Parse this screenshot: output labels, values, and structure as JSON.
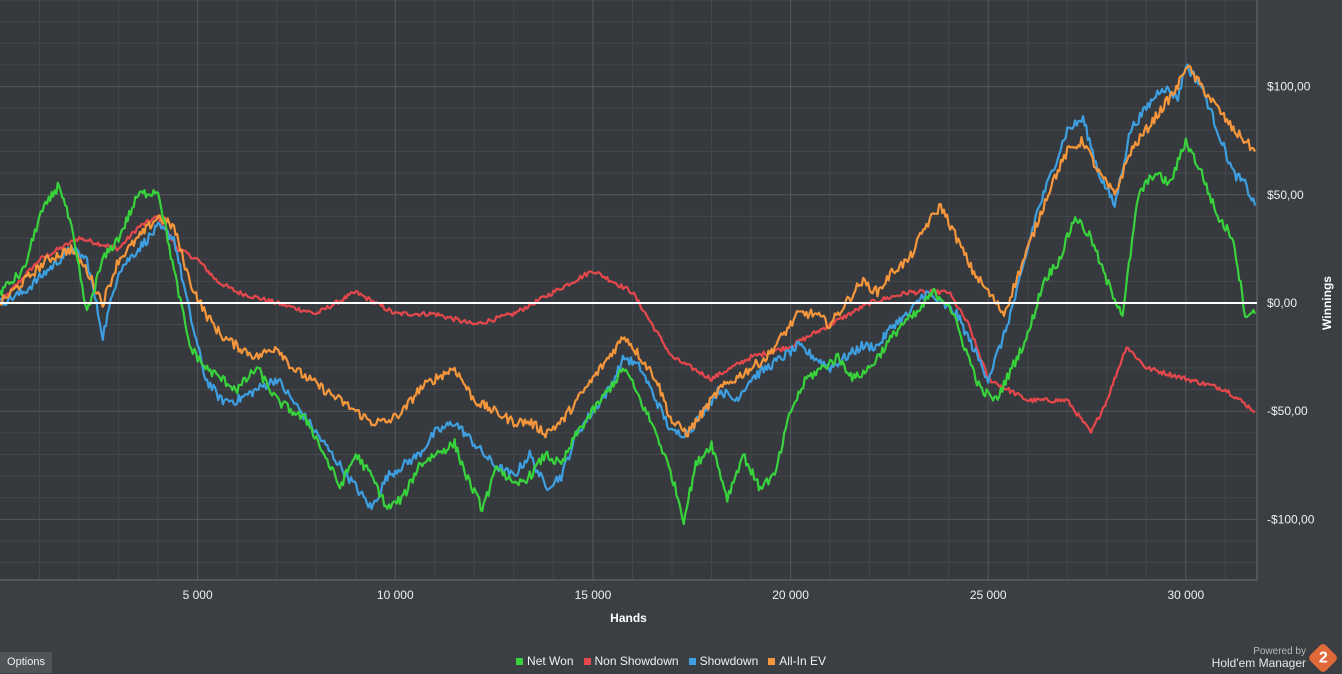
{
  "chart_data": {
    "type": "line",
    "title": "",
    "xlabel": "Hands",
    "ylabel": "Winnings",
    "xlim": [
      0,
      31800
    ],
    "ylim": [
      -128,
      140
    ],
    "x_ticks": [
      5000,
      10000,
      15000,
      20000,
      25000,
      30000
    ],
    "x_tick_labels": [
      "5 000",
      "10 000",
      "15 000",
      "20 000",
      "25 000",
      "30 000"
    ],
    "y_ticks": [
      100,
      50,
      0,
      -50,
      -100
    ],
    "y_tick_labels": [
      "$100,00",
      "$50,00",
      "$0,00",
      "-$50,00",
      "-$100,00"
    ],
    "grid": true,
    "legend_position": "bottom-center",
    "zero_line": true,
    "series": [
      {
        "name": "Net Won",
        "color": "#38d23c",
        "x": [
          0,
          600,
          1000,
          1500,
          1800,
          2200,
          2600,
          3000,
          3500,
          4000,
          4400,
          4800,
          5200,
          5600,
          6000,
          6500,
          7000,
          7400,
          7800,
          8200,
          8600,
          9000,
          9400,
          9800,
          10200,
          10600,
          11000,
          11500,
          11800,
          12200,
          12600,
          13000,
          13400,
          13800,
          14200,
          14600,
          15000,
          15400,
          15800,
          16200,
          16600,
          17000,
          17300,
          17600,
          18000,
          18400,
          18800,
          19200,
          19600,
          20000,
          20400,
          20800,
          21200,
          21600,
          22000,
          22400,
          22800,
          23200,
          23600,
          24000,
          24400,
          24800,
          25200,
          25600,
          26000,
          26400,
          26800,
          27200,
          27600,
          28000,
          28400,
          28800,
          29200,
          29600,
          30000,
          30400,
          30800,
          31200,
          31500,
          31750
        ],
        "values": [
          5,
          15,
          40,
          55,
          35,
          -5,
          20,
          30,
          50,
          52,
          15,
          -20,
          -30,
          -35,
          -40,
          -30,
          -45,
          -50,
          -55,
          -70,
          -85,
          -70,
          -80,
          -95,
          -90,
          -75,
          -70,
          -65,
          -80,
          -95,
          -75,
          -85,
          -80,
          -70,
          -75,
          -60,
          -50,
          -40,
          -30,
          -45,
          -60,
          -80,
          -100,
          -75,
          -65,
          -90,
          -70,
          -85,
          -80,
          -50,
          -35,
          -30,
          -25,
          -35,
          -30,
          -20,
          -10,
          -5,
          5,
          0,
          -20,
          -40,
          -45,
          -30,
          -15,
          10,
          20,
          40,
          30,
          10,
          -5,
          50,
          60,
          55,
          75,
          60,
          40,
          30,
          -5,
          -5
        ]
      },
      {
        "name": "Non Showdown",
        "color": "#e5484c",
        "x": [
          0,
          1000,
          2000,
          3000,
          3500,
          4000,
          4500,
          5000,
          5500,
          6000,
          7000,
          8000,
          9000,
          10000,
          11000,
          12000,
          13000,
          14000,
          15000,
          16000,
          17000,
          18000,
          19000,
          20000,
          21000,
          22000,
          23000,
          24000,
          24500,
          25000,
          26000,
          27000,
          27600,
          28000,
          28500,
          29000,
          30000,
          31000,
          31750
        ],
        "values": [
          0,
          20,
          30,
          25,
          35,
          40,
          25,
          20,
          10,
          5,
          0,
          -5,
          5,
          -5,
          -5,
          -10,
          -5,
          5,
          15,
          5,
          -25,
          -35,
          -25,
          -20,
          -10,
          0,
          5,
          5,
          -10,
          -35,
          -45,
          -45,
          -60,
          -45,
          -20,
          -30,
          -35,
          -40,
          -50
        ]
      },
      {
        "name": "Showdown",
        "color": "#3d9fe0",
        "x": [
          0,
          600,
          1200,
          1800,
          2200,
          2600,
          3000,
          3500,
          4000,
          4400,
          4800,
          5200,
          5600,
          6000,
          6500,
          7000,
          7400,
          7800,
          8200,
          8600,
          9000,
          9400,
          9800,
          10200,
          10600,
          11000,
          11500,
          12000,
          12500,
          13000,
          13400,
          13800,
          14200,
          14600,
          15000,
          15400,
          15800,
          16200,
          16600,
          17000,
          17400,
          17800,
          18200,
          18600,
          19000,
          19400,
          19800,
          20200,
          20600,
          21000,
          21400,
          21800,
          22200,
          22600,
          23000,
          23400,
          23800,
          24200,
          24600,
          25000,
          25400,
          25800,
          26200,
          26600,
          27000,
          27400,
          27800,
          28200,
          28600,
          29000,
          29400,
          29800,
          30000,
          30400,
          30800,
          31200,
          31500,
          31750
        ],
        "values": [
          0,
          5,
          15,
          25,
          20,
          -15,
          15,
          25,
          35,
          30,
          -5,
          -35,
          -45,
          -45,
          -40,
          -35,
          -45,
          -55,
          -65,
          -75,
          -85,
          -95,
          -80,
          -75,
          -70,
          -60,
          -55,
          -65,
          -75,
          -80,
          -70,
          -85,
          -80,
          -60,
          -50,
          -40,
          -25,
          -30,
          -45,
          -60,
          -60,
          -50,
          -40,
          -45,
          -35,
          -30,
          -25,
          -20,
          -25,
          -30,
          -25,
          -20,
          -20,
          -10,
          -5,
          5,
          0,
          -5,
          -20,
          -35,
          -15,
          10,
          40,
          60,
          80,
          85,
          60,
          45,
          80,
          90,
          100,
          95,
          110,
          100,
          80,
          60,
          55,
          45
        ]
      },
      {
        "name": "All-In EV",
        "color": "#f4963c",
        "x": [
          0,
          600,
          1200,
          1800,
          2200,
          2600,
          3000,
          3500,
          4000,
          4400,
          4800,
          5200,
          5600,
          6000,
          6500,
          7000,
          7400,
          7800,
          8200,
          8600,
          9000,
          9400,
          9800,
          10200,
          10600,
          11000,
          11500,
          12000,
          12500,
          13000,
          13400,
          13800,
          14200,
          14600,
          15000,
          15400,
          15800,
          16200,
          16600,
          17000,
          17400,
          17800,
          18200,
          18600,
          19000,
          19400,
          19800,
          20200,
          20600,
          21000,
          21400,
          21800,
          22200,
          22600,
          23000,
          23400,
          23800,
          24200,
          24600,
          25000,
          25400,
          25800,
          26200,
          26600,
          27000,
          27400,
          27800,
          28200,
          28600,
          29000,
          29400,
          29800,
          30000,
          30400,
          30800,
          31200,
          31500,
          31750
        ],
        "values": [
          0,
          10,
          20,
          25,
          15,
          0,
          20,
          30,
          40,
          35,
          10,
          -5,
          -15,
          -20,
          -25,
          -20,
          -30,
          -35,
          -40,
          -45,
          -50,
          -55,
          -55,
          -50,
          -40,
          -35,
          -30,
          -45,
          -50,
          -55,
          -55,
          -60,
          -55,
          -45,
          -35,
          -25,
          -15,
          -25,
          -35,
          -55,
          -60,
          -50,
          -40,
          -35,
          -30,
          -25,
          -15,
          -5,
          -5,
          -10,
          0,
          10,
          5,
          15,
          20,
          35,
          45,
          30,
          15,
          5,
          -5,
          15,
          35,
          55,
          70,
          75,
          60,
          50,
          70,
          80,
          90,
          100,
          110,
          100,
          90,
          80,
          75,
          70
        ]
      }
    ]
  },
  "ui": {
    "options_label": "Options",
    "powered_by": "Powered by",
    "brand_name": "Hold'em Manager",
    "brand_logo_digit": "2"
  }
}
